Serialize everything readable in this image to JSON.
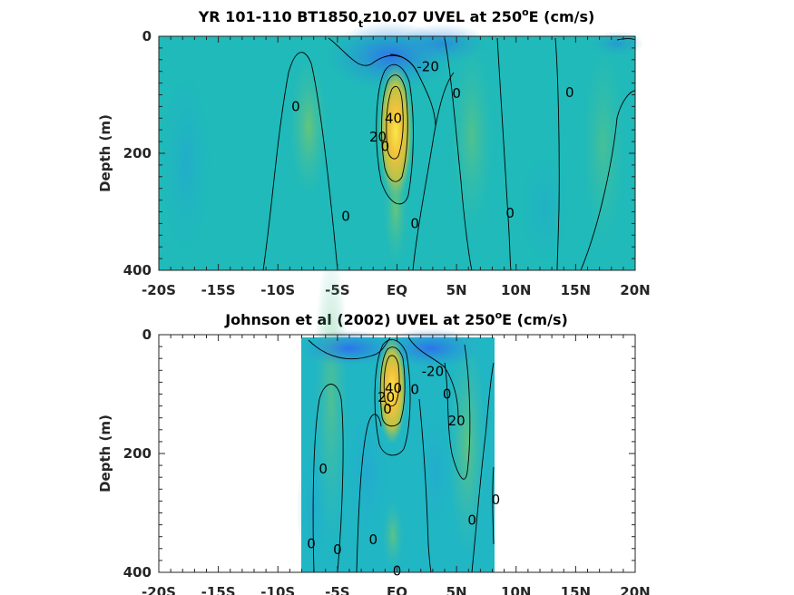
{
  "chart_data": [
    {
      "type": "heatmap",
      "title_main": "YR 101-110 BT1850",
      "title_sub": "t",
      "title_rest": "z10.07 UVEL at 250",
      "title_sup": "o",
      "title_end": "E (cm/s)",
      "ylabel": "Depth (m)",
      "xlim": [
        -20,
        20
      ],
      "ylim": [
        0,
        400
      ],
      "y_reversed": true,
      "x_ticks": [
        -20,
        -15,
        -10,
        -5,
        0,
        5,
        10,
        15,
        20
      ],
      "x_tick_labels": [
        "-20S",
        "-15S",
        "-10S",
        "-5S",
        "EQ",
        "5N",
        "10N",
        "15N",
        "20N"
      ],
      "y_ticks": [
        0,
        200,
        400
      ],
      "y_tick_labels": [
        "0",
        "200",
        "400"
      ],
      "data_extent_x": [
        -20,
        20
      ],
      "contour_labels": [
        {
          "text": "-20",
          "x": 2.6,
          "y": 52
        },
        {
          "text": "0",
          "x": -8.5,
          "y": 120
        },
        {
          "text": "0",
          "x": 5,
          "y": 98
        },
        {
          "text": "0",
          "x": 14.5,
          "y": 96
        },
        {
          "text": "0",
          "x": -4.3,
          "y": 308
        },
        {
          "text": "0",
          "x": 9.5,
          "y": 302
        },
        {
          "text": "0",
          "x": 1.5,
          "y": 320
        },
        {
          "text": "40",
          "x": -0.3,
          "y": 140
        },
        {
          "text": "20",
          "x": -1.6,
          "y": 172
        },
        {
          "text": "0",
          "x": -1.0,
          "y": 188
        }
      ]
    },
    {
      "type": "heatmap",
      "title_main": "Johnson et al (2002) UVEL at 250",
      "title_sup": "o",
      "title_end": "E (cm/s)",
      "ylabel": "Depth (m)",
      "xlim": [
        -20,
        20
      ],
      "ylim": [
        0,
        400
      ],
      "y_reversed": true,
      "x_ticks": [
        -20,
        -15,
        -10,
        -5,
        0,
        5,
        10,
        15,
        20
      ],
      "x_tick_labels": [
        "-20S",
        "-15S",
        "-10S",
        "-5S",
        "EQ",
        "5N",
        "10N",
        "15N",
        "20N"
      ],
      "y_ticks": [
        0,
        200,
        400
      ],
      "y_tick_labels": [
        "0",
        "200",
        "400"
      ],
      "data_extent_x": [
        -8,
        8.5
      ],
      "contour_labels": [
        {
          "text": "-20",
          "x": 3.0,
          "y": 62
        },
        {
          "text": "40",
          "x": -0.3,
          "y": 90
        },
        {
          "text": "20",
          "x": -0.9,
          "y": 105
        },
        {
          "text": "0",
          "x": -0.8,
          "y": 125
        },
        {
          "text": "0",
          "x": 1.5,
          "y": 92
        },
        {
          "text": "0",
          "x": 4.2,
          "y": 100
        },
        {
          "text": "20",
          "x": 5.0,
          "y": 145
        },
        {
          "text": "0",
          "x": -6.2,
          "y": 226
        },
        {
          "text": "0",
          "x": -7.2,
          "y": 352
        },
        {
          "text": "0",
          "x": -5.0,
          "y": 362
        },
        {
          "text": "0",
          "x": -2.0,
          "y": 345
        },
        {
          "text": "0",
          "x": 6.3,
          "y": 312
        },
        {
          "text": "0",
          "x": 8.3,
          "y": 278
        },
        {
          "text": "0",
          "x": 0.0,
          "y": 398
        }
      ]
    }
  ]
}
